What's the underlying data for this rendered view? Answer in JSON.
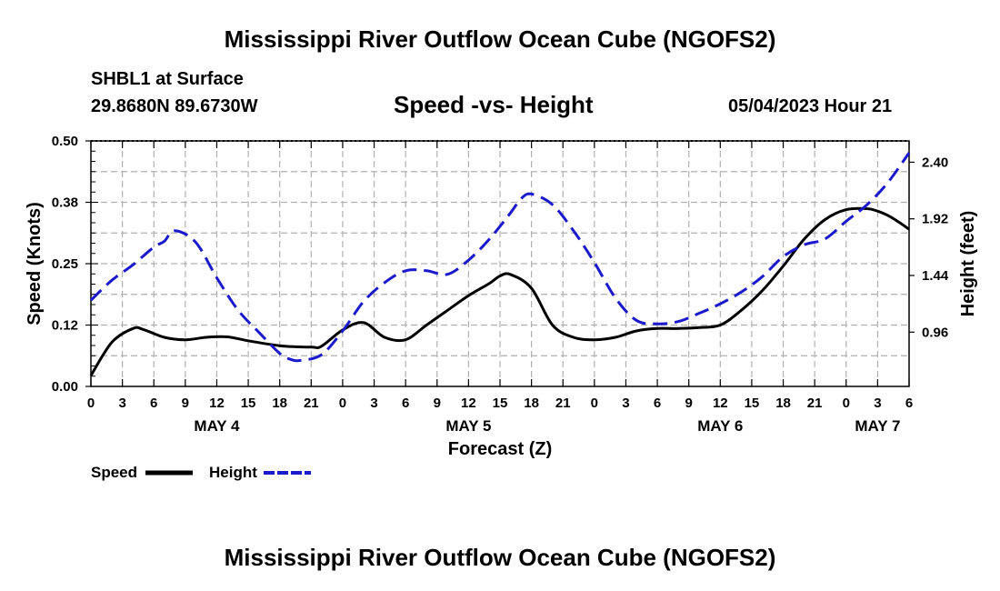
{
  "page_title": "Mississippi River Outflow Ocean Cube (NGOFS2)",
  "station": "SHBL1 at Surface",
  "coords": "29.8680N  89.6730W",
  "subtitle": "Speed -vs- Height",
  "timestamp": "05/04/2023 Hour 21",
  "footer_title": "Mississippi River Outflow Ocean Cube (NGOFS2)",
  "colors": {
    "speed": "#000000",
    "height": "#1a1acc",
    "grid": "#b0b0b0"
  },
  "chart_data": {
    "type": "line",
    "title": "Speed -vs- Height",
    "xlabel": "Forecast (Z)",
    "ylabel": "Speed (Knots)",
    "y2label": "Height (feet)",
    "x_range_hours": [
      0,
      78
    ],
    "ylim": [
      0,
      0.5
    ],
    "y2lim": [
      0.5,
      2.58
    ],
    "yticks": [
      "0.00",
      "0.12",
      "0.25",
      "0.38",
      "0.50"
    ],
    "y2ticks": [
      "0.96",
      "1.44",
      "1.92",
      "2.40"
    ],
    "y2tick_values": [
      0.96,
      1.44,
      1.92,
      2.4
    ],
    "xtick_labels": [
      "0",
      "3",
      "6",
      "9",
      "12",
      "15",
      "18",
      "21",
      "0",
      "3",
      "6",
      "9",
      "12",
      "15",
      "18",
      "21",
      "0",
      "3",
      "6",
      "9",
      "12",
      "15",
      "18",
      "21",
      "0",
      "3",
      "6"
    ],
    "day_labels": [
      {
        "label": "MAY 4",
        "hour": 12
      },
      {
        "label": "MAY 5",
        "hour": 36
      },
      {
        "label": "MAY 6",
        "hour": 60
      },
      {
        "label": "MAY 7",
        "hour": 75
      }
    ],
    "grid": true,
    "legend": [
      {
        "name": "Speed",
        "style": "solid"
      },
      {
        "name": "Height",
        "style": "dashed"
      }
    ],
    "series": [
      {
        "name": "Speed",
        "axis": "left",
        "style": "solid",
        "x": [
          0,
          2,
          4,
          5,
          7,
          9,
          11,
          13,
          15,
          18,
          21,
          22,
          24,
          26,
          28,
          30,
          32,
          34,
          36,
          38,
          39,
          40,
          42,
          44,
          46,
          48,
          50,
          52,
          54,
          56,
          58,
          60,
          62,
          64,
          66,
          68,
          70,
          72,
          74,
          75,
          76,
          77,
          78
        ],
        "y": [
          0.022,
          0.09,
          0.118,
          0.116,
          0.1,
          0.095,
          0.1,
          0.101,
          0.093,
          0.083,
          0.08,
          0.082,
          0.115,
          0.13,
          0.1,
          0.095,
          0.125,
          0.155,
          0.185,
          0.21,
          0.225,
          0.228,
          0.2,
          0.125,
          0.1,
          0.095,
          0.1,
          0.113,
          0.118,
          0.118,
          0.12,
          0.125,
          0.155,
          0.195,
          0.245,
          0.3,
          0.34,
          0.36,
          0.362,
          0.357,
          0.348,
          0.335,
          0.32
        ]
      },
      {
        "name": "Height",
        "axis": "right",
        "style": "dashed",
        "x": [
          0,
          2,
          4,
          6,
          7,
          8,
          10,
          12,
          14,
          16,
          18,
          19,
          20,
          22,
          24,
          26,
          28,
          30,
          32,
          34,
          36,
          38,
          40,
          41,
          42,
          44,
          46,
          48,
          50,
          52,
          54,
          56,
          58,
          60,
          62,
          64,
          66,
          68,
          70,
          72,
          74,
          76,
          78
        ],
        "y": [
          1.23,
          1.4,
          1.53,
          1.68,
          1.73,
          1.82,
          1.72,
          1.42,
          1.15,
          0.96,
          0.78,
          0.73,
          0.72,
          0.77,
          0.97,
          1.22,
          1.38,
          1.48,
          1.48,
          1.45,
          1.57,
          1.75,
          1.97,
          2.09,
          2.13,
          2.04,
          1.82,
          1.55,
          1.25,
          1.06,
          1.03,
          1.05,
          1.12,
          1.2,
          1.3,
          1.43,
          1.6,
          1.7,
          1.75,
          1.9,
          2.04,
          2.23,
          2.48
        ]
      }
    ]
  }
}
